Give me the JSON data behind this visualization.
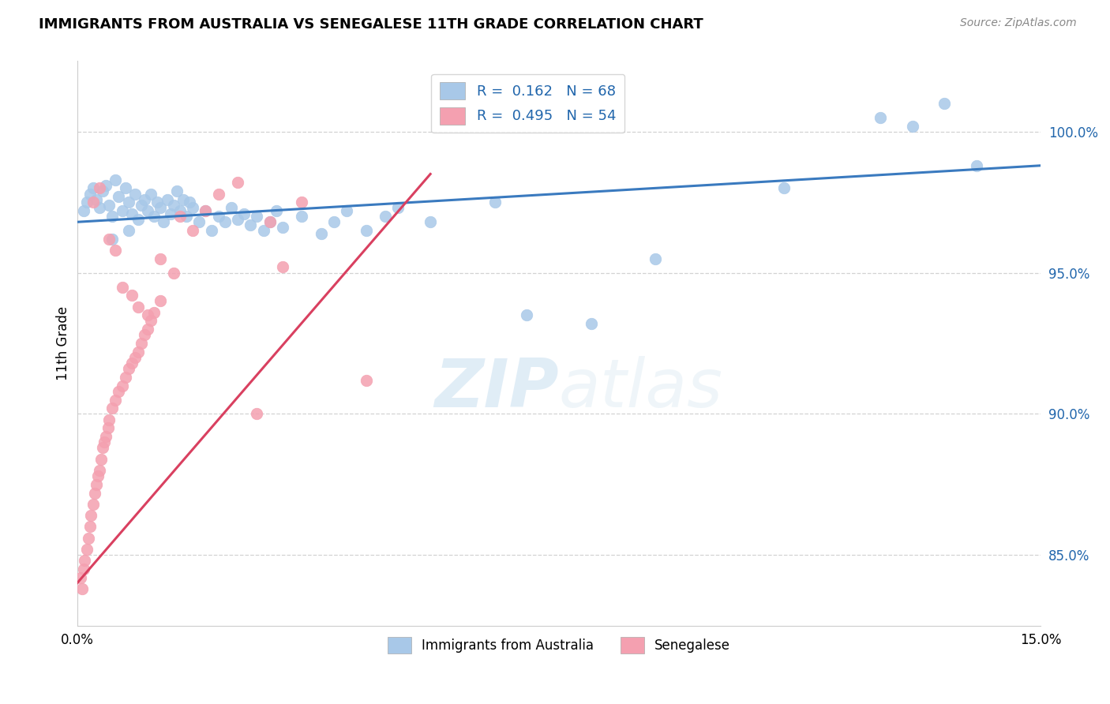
{
  "title": "IMMIGRANTS FROM AUSTRALIA VS SENEGALESE 11TH GRADE CORRELATION CHART",
  "source": "Source: ZipAtlas.com",
  "ylabel": "11th Grade",
  "xlim": [
    0.0,
    15.0
  ],
  "ylim": [
    82.5,
    102.5
  ],
  "yticks": [
    85.0,
    90.0,
    95.0,
    100.0
  ],
  "ytick_labels": [
    "85.0%",
    "90.0%",
    "95.0%",
    "100.0%"
  ],
  "xticks": [
    0.0,
    3.0,
    6.0,
    9.0,
    12.0,
    15.0
  ],
  "xtick_labels": [
    "0.0%",
    "",
    "",
    "",
    "",
    "15.0%"
  ],
  "legend_blue_label": "R =  0.162   N = 68",
  "legend_pink_label": "R =  0.495   N = 54",
  "legend_bottom_label1": "Immigrants from Australia",
  "legend_bottom_label2": "Senegalese",
  "blue_color": "#a8c8e8",
  "pink_color": "#f4a0b0",
  "blue_line_color": "#3a7abf",
  "pink_line_color": "#d94060",
  "watermark_zip": "ZIP",
  "watermark_atlas": "atlas",
  "blue_x": [
    0.1,
    0.15,
    0.2,
    0.25,
    0.3,
    0.35,
    0.4,
    0.45,
    0.5,
    0.55,
    0.6,
    0.65,
    0.7,
    0.75,
    0.8,
    0.85,
    0.9,
    0.95,
    1.0,
    1.05,
    1.1,
    1.15,
    1.2,
    1.25,
    1.3,
    1.35,
    1.4,
    1.45,
    1.5,
    1.55,
    1.6,
    1.65,
    1.7,
    1.75,
    1.8,
    1.9,
    2.0,
    2.1,
    2.2,
    2.3,
    2.4,
    2.5,
    2.6,
    2.7,
    2.8,
    2.9,
    3.0,
    3.1,
    3.2,
    3.5,
    3.8,
    4.0,
    4.2,
    4.5,
    4.8,
    5.0,
    5.5,
    6.5,
    7.0,
    8.0,
    9.0,
    11.0,
    12.5,
    13.0,
    13.5,
    14.0,
    0.55,
    0.8
  ],
  "blue_y": [
    97.2,
    97.5,
    97.8,
    98.0,
    97.6,
    97.3,
    97.9,
    98.1,
    97.4,
    97.0,
    98.3,
    97.7,
    97.2,
    98.0,
    97.5,
    97.1,
    97.8,
    96.9,
    97.4,
    97.6,
    97.2,
    97.8,
    97.0,
    97.5,
    97.3,
    96.8,
    97.6,
    97.1,
    97.4,
    97.9,
    97.2,
    97.6,
    97.0,
    97.5,
    97.3,
    96.8,
    97.2,
    96.5,
    97.0,
    96.8,
    97.3,
    96.9,
    97.1,
    96.7,
    97.0,
    96.5,
    96.8,
    97.2,
    96.6,
    97.0,
    96.4,
    96.8,
    97.2,
    96.5,
    97.0,
    97.3,
    96.8,
    97.5,
    93.5,
    93.2,
    95.5,
    98.0,
    100.5,
    100.2,
    101.0,
    98.8,
    96.2,
    96.5
  ],
  "pink_x": [
    0.05,
    0.08,
    0.1,
    0.12,
    0.15,
    0.18,
    0.2,
    0.22,
    0.25,
    0.28,
    0.3,
    0.32,
    0.35,
    0.38,
    0.4,
    0.42,
    0.45,
    0.48,
    0.5,
    0.55,
    0.6,
    0.65,
    0.7,
    0.75,
    0.8,
    0.85,
    0.9,
    0.95,
    1.0,
    1.05,
    1.1,
    1.15,
    1.2,
    1.3,
    1.5,
    1.8,
    2.0,
    2.2,
    2.5,
    3.0,
    3.5,
    0.25,
    0.35,
    0.5,
    0.6,
    0.7,
    0.85,
    0.95,
    1.1,
    1.3,
    1.6,
    2.8,
    3.2,
    4.5
  ],
  "pink_y": [
    84.2,
    83.8,
    84.5,
    84.8,
    85.2,
    85.6,
    86.0,
    86.4,
    86.8,
    87.2,
    87.5,
    87.8,
    88.0,
    88.4,
    88.8,
    89.0,
    89.2,
    89.5,
    89.8,
    90.2,
    90.5,
    90.8,
    91.0,
    91.3,
    91.6,
    91.8,
    92.0,
    92.2,
    92.5,
    92.8,
    93.0,
    93.3,
    93.6,
    94.0,
    95.0,
    96.5,
    97.2,
    97.8,
    98.2,
    96.8,
    97.5,
    97.5,
    98.0,
    96.2,
    95.8,
    94.5,
    94.2,
    93.8,
    93.5,
    95.5,
    97.0,
    90.0,
    95.2,
    91.2
  ],
  "blue_trend_x": [
    0.0,
    15.0
  ],
  "blue_trend_y": [
    96.8,
    98.8
  ],
  "pink_trend_x": [
    0.0,
    5.5
  ],
  "pink_trend_y": [
    84.0,
    98.5
  ]
}
